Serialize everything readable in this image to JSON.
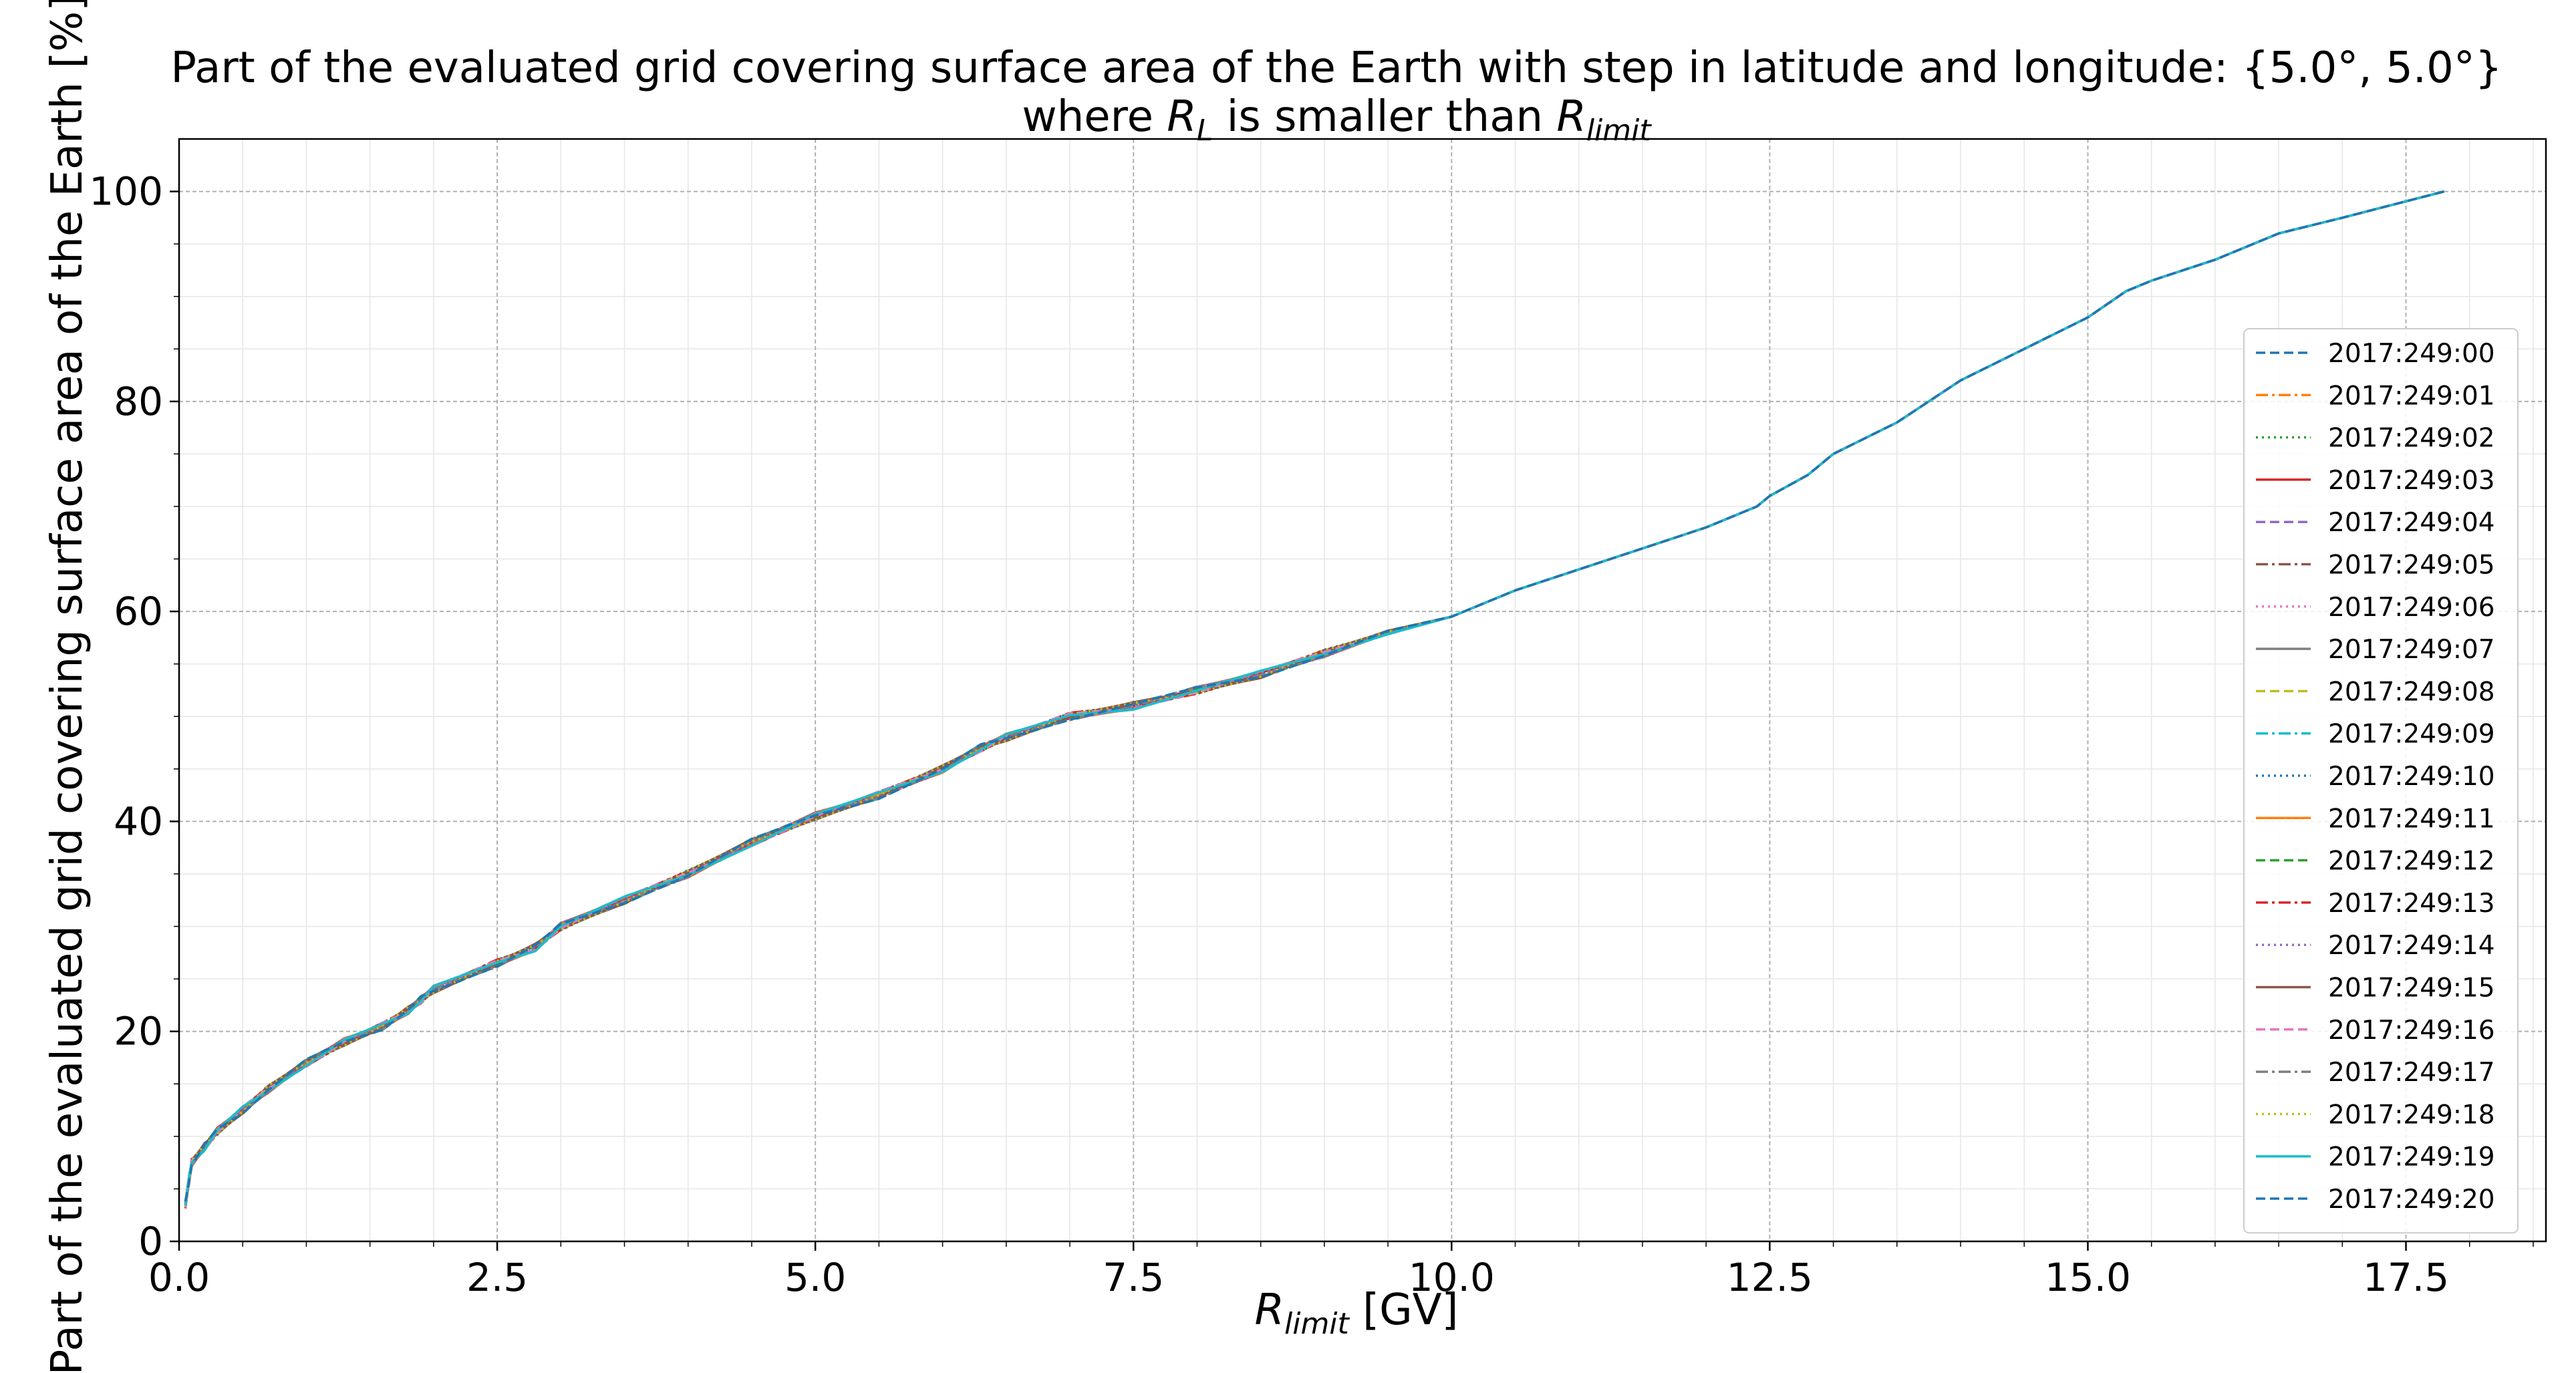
{
  "chart_data": {
    "type": "line",
    "title_line1": "Part of the evaluated grid covering surface area of the Earth with step in latitude and longitude: {5.0°, 5.0°}",
    "title_line2_prefix": "where ",
    "title_line2_var1": "R",
    "title_line2_var1_sub": "L",
    "title_line2_middle": " is smaller than ",
    "title_line2_var2": "R",
    "title_line2_var2_sub": "limit",
    "xlabel_var": "R",
    "xlabel_sub": "limit",
    "xlabel_unit": " [GV]",
    "ylabel": "Part of the evaluated grid covering surface area of the Earth  [%]",
    "xlim": [
      0,
      18.6
    ],
    "ylim": [
      0,
      105
    ],
    "xticks": [
      0.0,
      2.5,
      5.0,
      7.5,
      10.0,
      12.5,
      15.0,
      17.5
    ],
    "xtick_labels": [
      "0.0",
      "2.5",
      "5.0",
      "7.5",
      "10.0",
      "12.5",
      "15.0",
      "17.5"
    ],
    "yticks": [
      0,
      20,
      40,
      60,
      80,
      100
    ],
    "ytick_labels": [
      "0",
      "20",
      "40",
      "60",
      "80",
      "100"
    ],
    "grid": true,
    "minor_grid": true,
    "legend_position": "right",
    "x": [
      0.05,
      0.08,
      0.1,
      0.2,
      0.3,
      0.5,
      0.7,
      1.0,
      1.3,
      1.6,
      1.8,
      1.9,
      2.0,
      2.5,
      2.8,
      3.0,
      3.5,
      4.0,
      4.5,
      5.0,
      5.5,
      6.0,
      6.3,
      6.5,
      7.0,
      7.5,
      8.0,
      8.5,
      9.0,
      9.5,
      10.0,
      10.3,
      10.5,
      11.0,
      11.5,
      12.0,
      12.4,
      12.5,
      12.8,
      13.0,
      13.5,
      14.0,
      14.5,
      15.0,
      15.3,
      15.5,
      16.0,
      16.5,
      17.0,
      17.8
    ],
    "y": [
      3.5,
      6.0,
      7.5,
      9.0,
      10.5,
      12.5,
      14.5,
      17.0,
      19.0,
      20.5,
      22.0,
      23.0,
      24.0,
      26.5,
      28.0,
      30.0,
      32.5,
      35.0,
      38.0,
      40.5,
      42.5,
      45.0,
      47.0,
      48.0,
      50.0,
      51.0,
      52.5,
      54.0,
      56.0,
      58.0,
      59.5,
      61.0,
      62.0,
      64.0,
      66.0,
      68.0,
      70.0,
      71.0,
      73.0,
      75.0,
      78.0,
      82.0,
      85.0,
      88.0,
      90.5,
      91.5,
      93.5,
      96.0,
      97.5,
      100.0
    ],
    "series": [
      {
        "name": "2017:249:00",
        "color": "#1f77b4",
        "dash": "dashed"
      },
      {
        "name": "2017:249:01",
        "color": "#ff7f0e",
        "dash": "dashdot"
      },
      {
        "name": "2017:249:02",
        "color": "#2ca02c",
        "dash": "dotted"
      },
      {
        "name": "2017:249:03",
        "color": "#d62728",
        "dash": "solid"
      },
      {
        "name": "2017:249:04",
        "color": "#9467bd",
        "dash": "dashed"
      },
      {
        "name": "2017:249:05",
        "color": "#8c564b",
        "dash": "dashdot"
      },
      {
        "name": "2017:249:06",
        "color": "#e377c2",
        "dash": "dotted"
      },
      {
        "name": "2017:249:07",
        "color": "#7f7f7f",
        "dash": "solid"
      },
      {
        "name": "2017:249:08",
        "color": "#bcbd22",
        "dash": "dashed"
      },
      {
        "name": "2017:249:09",
        "color": "#17becf",
        "dash": "dashdot"
      },
      {
        "name": "2017:249:10",
        "color": "#1f77b4",
        "dash": "dotted"
      },
      {
        "name": "2017:249:11",
        "color": "#ff7f0e",
        "dash": "solid"
      },
      {
        "name": "2017:249:12",
        "color": "#2ca02c",
        "dash": "dashed"
      },
      {
        "name": "2017:249:13",
        "color": "#d62728",
        "dash": "dashdot"
      },
      {
        "name": "2017:249:14",
        "color": "#9467bd",
        "dash": "dotted"
      },
      {
        "name": "2017:249:15",
        "color": "#8c564b",
        "dash": "solid"
      },
      {
        "name": "2017:249:16",
        "color": "#e377c2",
        "dash": "dashed"
      },
      {
        "name": "2017:249:17",
        "color": "#7f7f7f",
        "dash": "dashdot"
      },
      {
        "name": "2017:249:18",
        "color": "#bcbd22",
        "dash": "dotted"
      },
      {
        "name": "2017:249:19",
        "color": "#17becf",
        "dash": "solid"
      },
      {
        "name": "2017:249:20",
        "color": "#1f77b4",
        "dash": "dashed"
      }
    ]
  }
}
